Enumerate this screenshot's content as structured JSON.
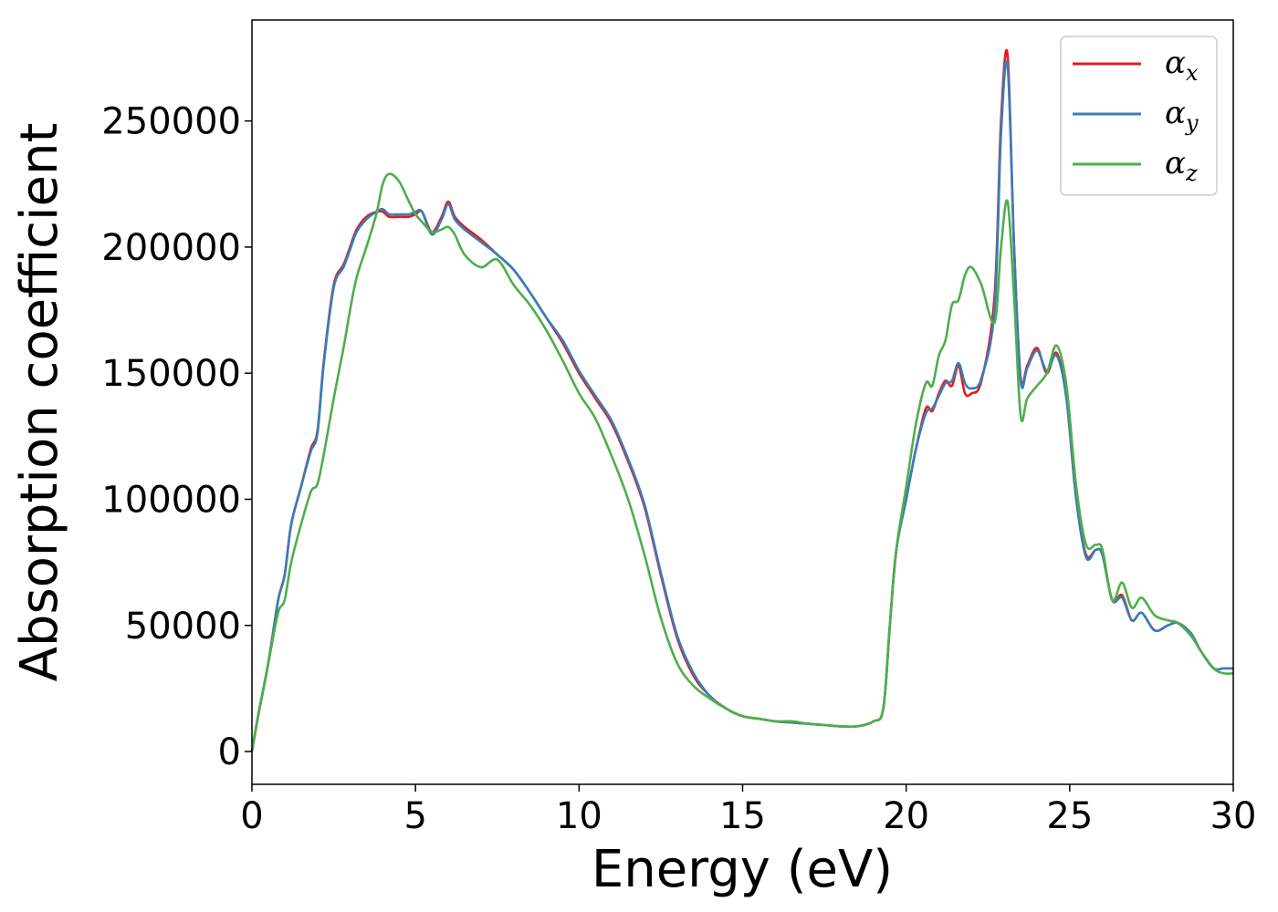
{
  "chart_data": {
    "type": "line",
    "xlabel": "Energy (eV)",
    "ylabel": "Absorption coefficient",
    "xlim": [
      0,
      30
    ],
    "ylim": [
      -13000,
      290000
    ],
    "xticks": [
      0,
      5,
      10,
      15,
      20,
      25,
      30
    ],
    "yticks": [
      0,
      50000,
      100000,
      150000,
      200000,
      250000
    ],
    "grid": false,
    "legend_position": "top-right",
    "series": [
      {
        "name": "α",
        "subscript": "x",
        "color": "#e41a1c",
        "x": [
          0,
          0.2,
          0.5,
          0.8,
          1.0,
          1.2,
          1.5,
          1.8,
          2.0,
          2.2,
          2.5,
          2.8,
          3.0,
          3.2,
          3.5,
          3.8,
          4.0,
          4.2,
          4.5,
          4.8,
          5.0,
          5.2,
          5.5,
          5.8,
          6.0,
          6.2,
          6.5,
          7.0,
          7.5,
          8.0,
          8.5,
          9.0,
          9.5,
          10.0,
          10.5,
          11.0,
          11.5,
          12.0,
          12.5,
          13.0,
          13.5,
          14.0,
          14.5,
          15.0,
          15.5,
          16.0,
          16.5,
          17.0,
          17.5,
          18.0,
          18.5,
          19.0,
          19.3,
          19.5,
          19.7,
          20.0,
          20.3,
          20.6,
          20.8,
          21.0,
          21.2,
          21.4,
          21.6,
          21.8,
          22.0,
          22.3,
          22.7,
          22.9,
          23.1,
          23.3,
          23.5,
          23.7,
          24.0,
          24.3,
          24.6,
          24.9,
          25.2,
          25.5,
          25.8,
          26.0,
          26.3,
          26.6,
          26.9,
          27.2,
          27.6,
          28.0,
          28.3,
          28.7,
          29.0,
          29.4,
          29.7,
          30.0
        ],
        "y": [
          0,
          15000,
          35000,
          60000,
          70000,
          90000,
          105000,
          120000,
          127000,
          155000,
          185000,
          193000,
          200000,
          207000,
          212000,
          214000,
          214000,
          212000,
          212000,
          212000,
          213000,
          214000,
          206000,
          212000,
          218000,
          212000,
          208000,
          203000,
          197000,
          191000,
          182000,
          172000,
          162000,
          150000,
          140000,
          130000,
          115000,
          97000,
          70000,
          45000,
          30000,
          22000,
          17000,
          14000,
          13000,
          12000,
          11500,
          11000,
          10500,
          10000,
          10000,
          12000,
          17000,
          50000,
          80000,
          100000,
          120000,
          136000,
          135000,
          142000,
          147000,
          145000,
          153000,
          142000,
          142000,
          147000,
          180000,
          250000,
          276000,
          200000,
          148000,
          153000,
          160000,
          150000,
          158000,
          140000,
          100000,
          78000,
          80000,
          78000,
          60000,
          62000,
          52000,
          55000,
          48000,
          50000,
          51000,
          47000,
          40000,
          33000,
          33000,
          33000
        ]
      },
      {
        "name": "α",
        "subscript": "y",
        "color": "#377eb8",
        "x": [
          0,
          0.2,
          0.5,
          0.8,
          1.0,
          1.2,
          1.5,
          1.8,
          2.0,
          2.2,
          2.5,
          2.8,
          3.0,
          3.2,
          3.5,
          3.8,
          4.0,
          4.2,
          4.5,
          4.8,
          5.0,
          5.2,
          5.5,
          5.8,
          6.0,
          6.2,
          6.5,
          7.0,
          7.5,
          8.0,
          8.5,
          9.0,
          9.5,
          10.0,
          10.5,
          11.0,
          11.5,
          12.0,
          12.5,
          13.0,
          13.5,
          14.0,
          14.5,
          15.0,
          15.5,
          16.0,
          16.5,
          17.0,
          17.5,
          18.0,
          18.5,
          19.0,
          19.3,
          19.5,
          19.7,
          20.0,
          20.3,
          20.6,
          20.8,
          21.0,
          21.2,
          21.4,
          21.6,
          21.8,
          22.0,
          22.3,
          22.7,
          22.9,
          23.1,
          23.3,
          23.5,
          23.7,
          24.0,
          24.3,
          24.6,
          24.9,
          25.2,
          25.5,
          25.8,
          26.0,
          26.3,
          26.6,
          26.9,
          27.2,
          27.6,
          28.0,
          28.3,
          28.7,
          29.0,
          29.4,
          29.7,
          30.0
        ],
        "y": [
          0,
          15000,
          35000,
          60000,
          70000,
          90000,
          105000,
          119000,
          126000,
          154000,
          184000,
          192000,
          199000,
          206000,
          211000,
          214000,
          215000,
          213000,
          213000,
          213000,
          214000,
          214000,
          205000,
          211000,
          217000,
          211000,
          207000,
          202000,
          197000,
          191000,
          182000,
          172000,
          163000,
          151000,
          141000,
          131000,
          116000,
          98000,
          71000,
          46000,
          31000,
          22000,
          17000,
          14000,
          13000,
          12000,
          11500,
          11000,
          10500,
          10000,
          10000,
          12000,
          17000,
          50000,
          80000,
          100000,
          120000,
          134000,
          136000,
          141000,
          146000,
          147000,
          154000,
          146000,
          144000,
          148000,
          175000,
          245000,
          272000,
          200000,
          147000,
          152000,
          159000,
          151000,
          157000,
          140000,
          100000,
          77000,
          80000,
          78000,
          60000,
          61000,
          52000,
          55000,
          48000,
          50000,
          51000,
          47000,
          40000,
          33000,
          33000,
          33000
        ]
      },
      {
        "name": "α",
        "subscript": "z",
        "color": "#4daf4a",
        "x": [
          0,
          0.2,
          0.5,
          0.8,
          1.0,
          1.2,
          1.5,
          1.8,
          2.0,
          2.2,
          2.5,
          2.8,
          3.0,
          3.2,
          3.5,
          3.8,
          4.0,
          4.2,
          4.5,
          4.8,
          5.0,
          5.2,
          5.5,
          5.8,
          6.0,
          6.2,
          6.5,
          7.0,
          7.5,
          8.0,
          8.5,
          9.0,
          9.5,
          10.0,
          10.5,
          11.0,
          11.5,
          12.0,
          12.5,
          13.0,
          13.5,
          14.0,
          14.5,
          15.0,
          15.5,
          16.0,
          16.5,
          17.0,
          17.5,
          18.0,
          18.5,
          19.0,
          19.3,
          19.5,
          19.7,
          20.0,
          20.3,
          20.6,
          20.8,
          21.0,
          21.2,
          21.4,
          21.6,
          21.8,
          22.0,
          22.3,
          22.7,
          22.9,
          23.1,
          23.3,
          23.5,
          23.7,
          24.0,
          24.3,
          24.6,
          24.9,
          25.2,
          25.5,
          25.8,
          26.0,
          26.3,
          26.6,
          26.9,
          27.2,
          27.6,
          28.0,
          28.3,
          28.7,
          29.0,
          29.4,
          29.7,
          30.0
        ],
        "y": [
          0,
          15000,
          35000,
          55000,
          60000,
          75000,
          90000,
          103000,
          106000,
          118000,
          140000,
          160000,
          175000,
          188000,
          200000,
          213000,
          225000,
          229000,
          226000,
          218000,
          213000,
          210000,
          206000,
          207000,
          208000,
          205000,
          197000,
          192000,
          195000,
          185000,
          177000,
          167000,
          155000,
          142000,
          132000,
          117000,
          100000,
          78000,
          53000,
          35000,
          26000,
          21000,
          17000,
          14000,
          13000,
          12000,
          12000,
          11000,
          10500,
          10000,
          10000,
          12000,
          17000,
          50000,
          80000,
          105000,
          130000,
          146000,
          145000,
          157000,
          163000,
          177000,
          179000,
          189000,
          192000,
          185000,
          170000,
          200000,
          218000,
          180000,
          133000,
          140000,
          145000,
          150000,
          161000,
          145000,
          105000,
          82000,
          82000,
          80000,
          60000,
          67000,
          57000,
          61000,
          54000,
          52000,
          51000,
          46000,
          40000,
          33000,
          31000,
          31000
        ]
      }
    ]
  }
}
